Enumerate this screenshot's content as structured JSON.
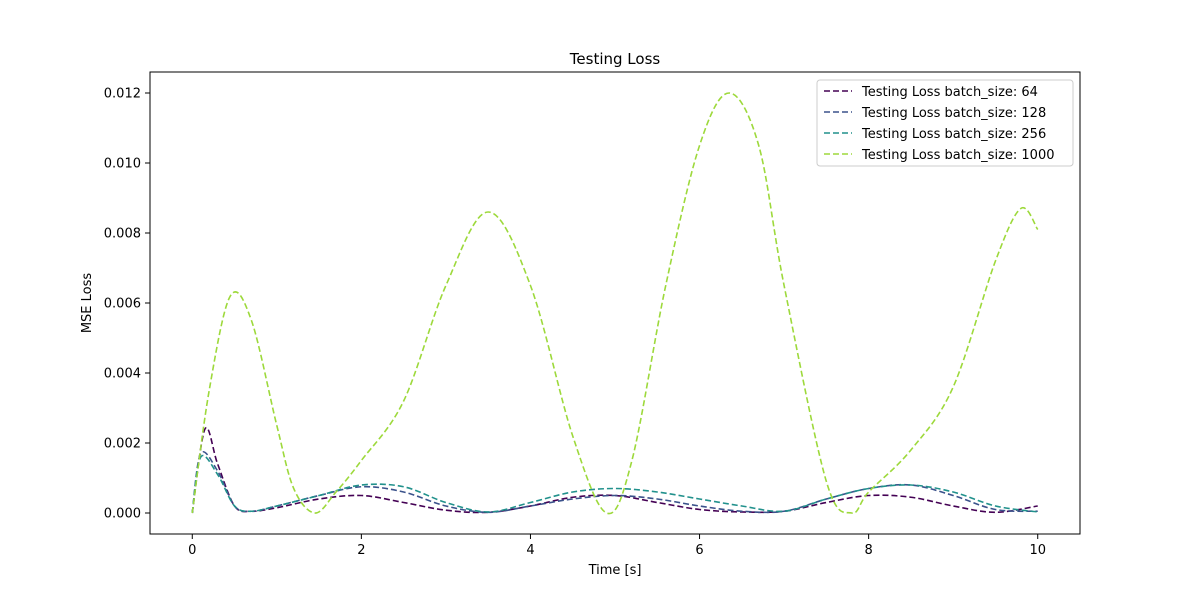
{
  "chart_data": {
    "type": "line",
    "title": "Testing Loss",
    "xlabel": "Time [s]",
    "ylabel": "MSE Loss",
    "xlim": [
      -0.5,
      10.5
    ],
    "ylim": [
      -0.0006,
      0.0126
    ],
    "xticks": [
      0,
      2,
      4,
      6,
      8,
      10
    ],
    "xtick_labels": [
      "0",
      "2",
      "4",
      "6",
      "8",
      "10"
    ],
    "yticks": [
      0.0,
      0.002,
      0.004,
      0.006,
      0.008,
      0.01,
      0.012
    ],
    "ytick_labels": [
      "0.000",
      "0.002",
      "0.004",
      "0.006",
      "0.008",
      "0.010",
      "0.012"
    ],
    "grid": false,
    "legend_position": "top-right",
    "line_style": "dashed",
    "series": [
      {
        "name": "Testing Loss batch_size: 64",
        "color": "#440154",
        "x": [
          0,
          0.15,
          0.3,
          0.5,
          0.7,
          1.0,
          1.5,
          2.0,
          2.5,
          3.0,
          3.5,
          4.0,
          4.5,
          5.0,
          5.5,
          6.0,
          6.5,
          7.0,
          7.5,
          8.0,
          8.5,
          9.0,
          9.5,
          10.0
        ],
        "y": [
          0.0,
          0.0024,
          0.0014,
          0.0002,
          5e-05,
          0.00015,
          0.0004,
          0.0005,
          0.0003,
          8e-05,
          2e-05,
          0.0002,
          0.00045,
          0.0005,
          0.0003,
          0.0001,
          3e-05,
          5e-05,
          0.0003,
          0.0005,
          0.00045,
          0.0002,
          2e-05,
          0.0002
        ]
      },
      {
        "name": "Testing Loss batch_size: 128",
        "color": "#3b528b",
        "x": [
          0,
          0.1,
          0.3,
          0.5,
          0.7,
          1.0,
          1.5,
          2.0,
          2.5,
          3.0,
          3.5,
          4.0,
          4.5,
          5.0,
          5.5,
          6.0,
          6.5,
          7.0,
          7.5,
          8.0,
          8.5,
          9.0,
          9.5,
          10.0
        ],
        "y": [
          0.0,
          0.0017,
          0.0012,
          0.0002,
          5e-05,
          0.0002,
          0.0005,
          0.00075,
          0.0006,
          0.0002,
          2e-05,
          0.0002,
          0.0004,
          0.0005,
          0.0004,
          0.0002,
          5e-05,
          5e-05,
          0.0004,
          0.0007,
          0.0008,
          0.0005,
          0.0001,
          5e-05
        ]
      },
      {
        "name": "Testing Loss batch_size: 256",
        "color": "#21918c",
        "x": [
          0,
          0.1,
          0.3,
          0.5,
          0.7,
          1.0,
          1.5,
          2.0,
          2.5,
          3.0,
          3.5,
          4.0,
          4.5,
          5.0,
          5.5,
          6.0,
          6.5,
          7.0,
          7.5,
          8.0,
          8.5,
          9.0,
          9.5,
          10.0
        ],
        "y": [
          0.0,
          0.0016,
          0.0011,
          0.0002,
          5e-05,
          0.0002,
          0.0005,
          0.0008,
          0.00075,
          0.0003,
          3e-05,
          0.0003,
          0.0006,
          0.0007,
          0.0006,
          0.0004,
          0.0002,
          5e-05,
          0.0004,
          0.0007,
          0.0008,
          0.0006,
          0.0002,
          3e-05
        ]
      },
      {
        "name": "Testing Loss batch_size: 1000",
        "color": "#9dd93b",
        "x": [
          0,
          0.2,
          0.45,
          0.7,
          1.0,
          1.2,
          1.45,
          1.7,
          2.0,
          2.5,
          3.0,
          3.5,
          4.0,
          4.5,
          4.9,
          5.2,
          5.6,
          6.0,
          6.35,
          6.7,
          7.0,
          7.5,
          7.8,
          8.0,
          8.5,
          9.0,
          9.5,
          9.8,
          10.0
        ],
        "y": [
          0.0,
          0.0035,
          0.0062,
          0.0055,
          0.0025,
          0.0007,
          0.0,
          0.0006,
          0.0015,
          0.0032,
          0.0065,
          0.0086,
          0.0065,
          0.0022,
          0.0,
          0.0015,
          0.0065,
          0.0105,
          0.012,
          0.0105,
          0.0065,
          0.0009,
          0.0,
          0.0006,
          0.0018,
          0.0036,
          0.0072,
          0.0087,
          0.0081
        ]
      }
    ]
  }
}
